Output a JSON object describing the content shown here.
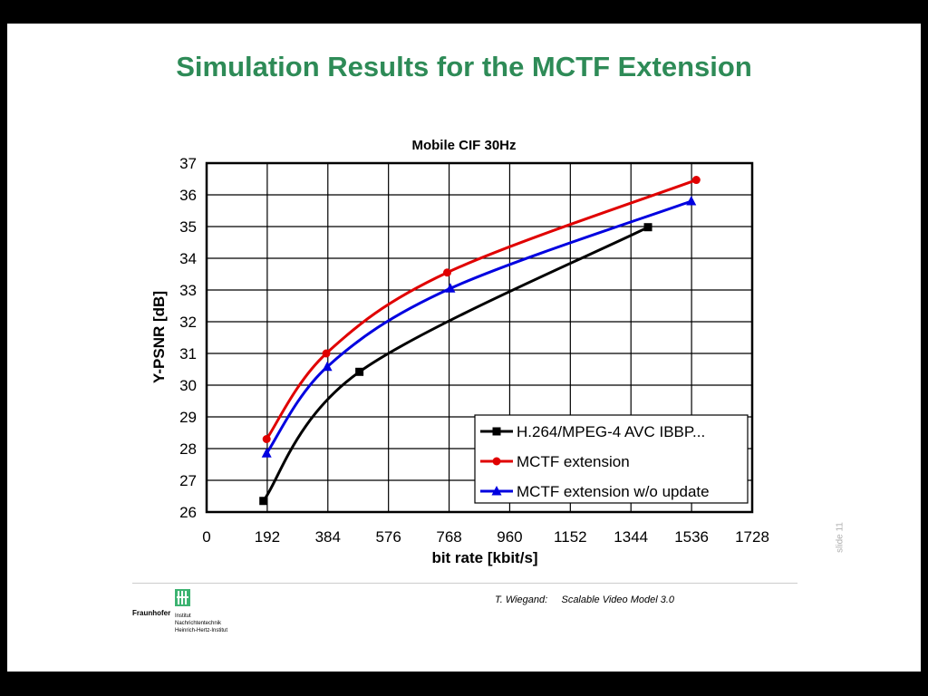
{
  "slide": {
    "title": "Simulation Results for the MCTF Extension",
    "footer": "T. Wiegand:     Scalable Video Model 3.0",
    "slide_number": "slide 11",
    "logo": {
      "brand": "Fraunhofer",
      "lines": [
        "Institut",
        "Nachrichtentechnik",
        "Heinrich-Hertz-Institut"
      ]
    }
  },
  "chart_data": {
    "type": "line",
    "title": "Mobile CIF 30Hz",
    "xlabel": "bit rate [kbit/s]",
    "ylabel": "Y-PSNR [dB]",
    "xlim": [
      0,
      1728
    ],
    "ylim": [
      26,
      37
    ],
    "xticks": [
      0,
      192,
      384,
      576,
      768,
      960,
      1152,
      1344,
      1536,
      1728
    ],
    "yticks": [
      26,
      27,
      28,
      29,
      30,
      31,
      32,
      33,
      34,
      35,
      36,
      37
    ],
    "grid": true,
    "legend_position": "bottom-right",
    "series": [
      {
        "name": "H.264/MPEG-4 AVC IBBP...",
        "color": "#000000",
        "marker": "square",
        "x": [
          180,
          484,
          1398
        ],
        "y": [
          26.35,
          30.42,
          34.98
        ]
      },
      {
        "name": "MCTF extension",
        "color": "#e00000",
        "marker": "circle",
        "x": [
          190,
          379,
          762,
          1551
        ],
        "y": [
          28.3,
          31.0,
          33.55,
          36.47
        ]
      },
      {
        "name": "MCTF extension w/o update",
        "color": "#0000e0",
        "marker": "triangle",
        "x": [
          190,
          382,
          772,
          1535
        ],
        "y": [
          27.85,
          30.58,
          33.05,
          35.8
        ]
      }
    ]
  }
}
